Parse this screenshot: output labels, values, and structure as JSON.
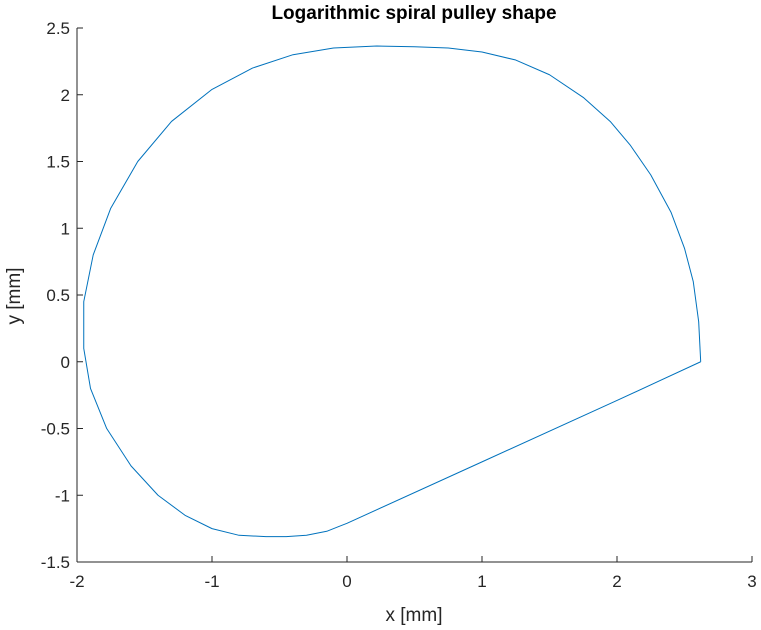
{
  "chart_data": {
    "type": "line",
    "title": "Logarithmic spiral pulley shape",
    "xlabel": "x [mm]",
    "ylabel": "y [mm]",
    "xlim": [
      -2,
      3
    ],
    "ylim": [
      -1.5,
      2.5
    ],
    "xticks": [
      -2,
      -1,
      0,
      1,
      2,
      3
    ],
    "yticks": [
      -1.5,
      -1,
      -0.5,
      0,
      0.5,
      1,
      1.5,
      2,
      2.5
    ],
    "xtick_labels": [
      "-2",
      "-1",
      "0",
      "1",
      "2",
      "3"
    ],
    "ytick_labels": [
      "-1.5",
      "-1",
      "-0.5",
      "0",
      "0.5",
      "1",
      "1.5",
      "2",
      "2.5"
    ],
    "grid": false,
    "legend": "none",
    "line_color": "#0072BD",
    "axis_color": "#262626",
    "series": [
      {
        "x": [
          2.62,
          2.605,
          2.565,
          2.5,
          2.4,
          2.25,
          2.1,
          1.95,
          1.75,
          1.5,
          1.25,
          1.0,
          0.75,
          0.5,
          0.22,
          -0.1,
          -0.4,
          -0.7,
          -1.0,
          -1.3,
          -1.55,
          -1.75,
          -1.88,
          -1.95,
          -1.95,
          -1.9,
          -1.78,
          -1.6,
          -1.4,
          -1.2,
          -1.0,
          -0.8,
          -0.6,
          -0.45,
          -0.3,
          -0.15,
          -0.05,
          0.0,
          1.0,
          2.0,
          2.62
        ],
        "y": [
          0.0,
          0.3,
          0.6,
          0.85,
          1.12,
          1.4,
          1.62,
          1.8,
          1.98,
          2.15,
          2.26,
          2.32,
          2.35,
          2.36,
          2.365,
          2.35,
          2.3,
          2.2,
          2.04,
          1.8,
          1.5,
          1.15,
          0.8,
          0.45,
          0.1,
          -0.2,
          -0.5,
          -0.78,
          -1.0,
          -1.15,
          -1.25,
          -1.3,
          -1.31,
          -1.31,
          -1.3,
          -1.27,
          -1.23,
          -1.21,
          -0.75,
          -0.29,
          0.0
        ]
      }
    ]
  }
}
